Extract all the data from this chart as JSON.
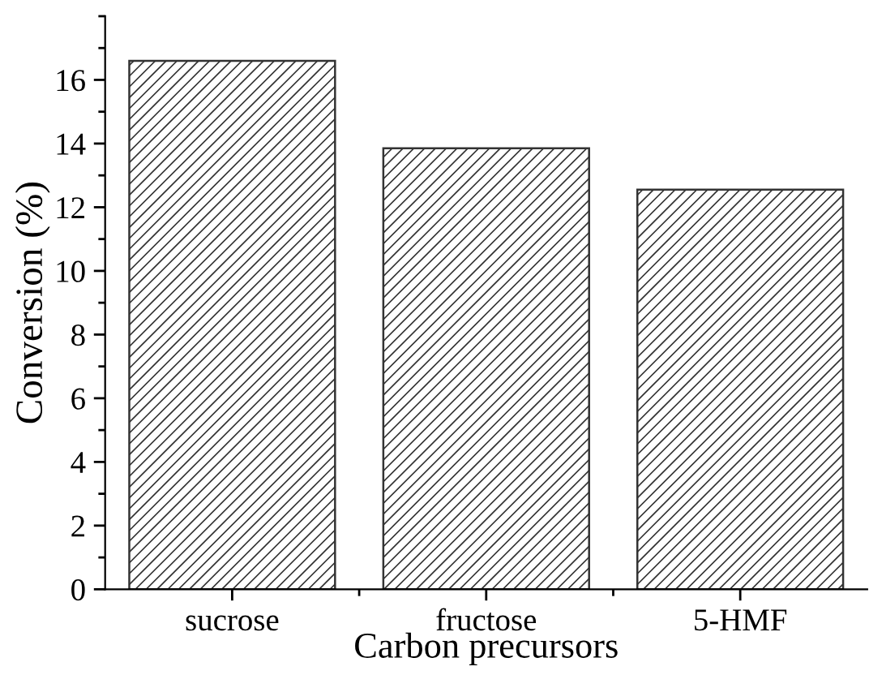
{
  "chart_data": {
    "type": "bar",
    "xlabel": "Carbon precursors",
    "ylabel": "Conversion (%)",
    "categories": [
      "sucrose",
      "fructose",
      "5-HMF"
    ],
    "values": [
      16.6,
      13.85,
      12.55
    ],
    "color": "#333333",
    "ylim": [
      0,
      18
    ],
    "yticks": [
      0,
      2,
      4,
      6,
      8,
      10,
      12,
      14,
      16
    ],
    "grid": false,
    "legend": false
  }
}
